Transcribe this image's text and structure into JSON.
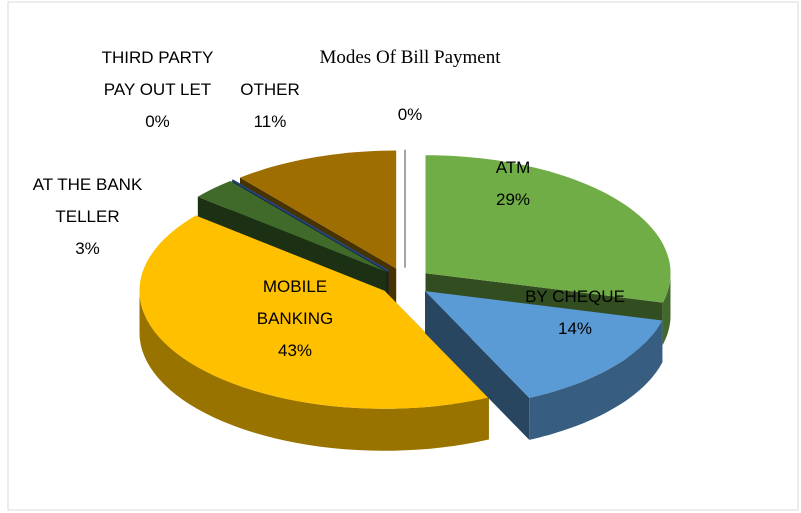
{
  "chart_data": {
    "type": "pie",
    "title": "Modes Of Bill Payment",
    "categories": [
      "ATM",
      "BY CHEQUE",
      "MOBILE BANKING",
      "AT THE BANK TELLER",
      "THIRD PARTY PAY OUT LET",
      "OTHER",
      null
    ],
    "values": [
      29,
      14,
      43,
      3,
      0,
      11,
      0
    ],
    "value_labels": [
      "29%",
      "14%",
      "43%",
      "3%",
      "0%",
      "11%",
      "0%"
    ],
    "colors": [
      "#70ad47",
      "#5b9bd5",
      "#ffc000",
      "#3f6a2a",
      "#264478",
      "#9e6e00",
      "#a5a5a5"
    ]
  }
}
